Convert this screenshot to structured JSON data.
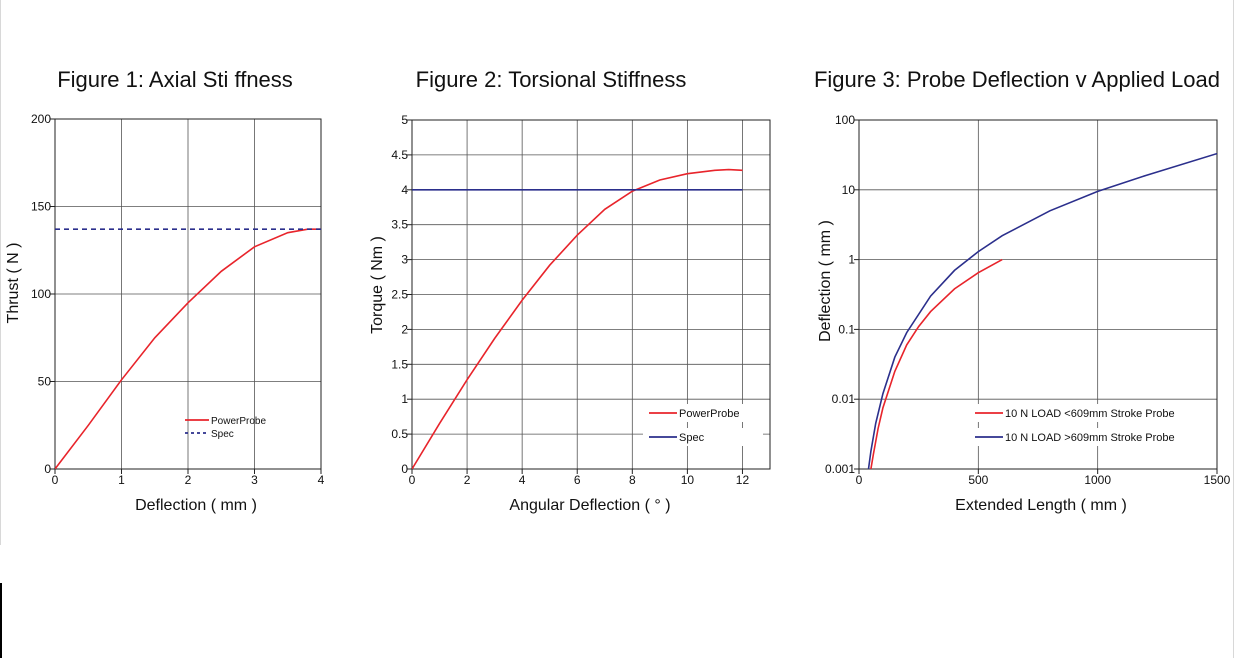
{
  "colors": {
    "red": "#e8242b",
    "blue": "#2b2f8c",
    "grid": "#555555",
    "axis": "#222222"
  },
  "chart_data": [
    {
      "type": "line",
      "title": "Figure 1: Axial Sti ffness",
      "xlabel": "Deflection ( mm )",
      "ylabel": "Thrust ( N )",
      "xlim": [
        0,
        4
      ],
      "ylim": [
        0,
        200
      ],
      "xticks": [
        0,
        1,
        2,
        3,
        4
      ],
      "yticks": [
        0,
        50,
        100,
        150,
        200
      ],
      "grid": true,
      "legend_position": "bottom-right",
      "series": [
        {
          "name": "PowerProbe",
          "color": "#e8242b",
          "dash": false,
          "x": [
            0,
            0.5,
            1,
            1.5,
            2,
            2.5,
            3,
            3.5,
            3.8,
            4.0
          ],
          "y": [
            0,
            25,
            51,
            75,
            95,
            113,
            127,
            135,
            137,
            137
          ]
        },
        {
          "name": "Spec",
          "color": "#2b2f8c",
          "dash": true,
          "x": [
            0,
            4
          ],
          "y": [
            137,
            137
          ]
        }
      ]
    },
    {
      "type": "line",
      "title": "Figure 2: Torsional Stiffness",
      "xlabel": "Angular Deflection ( ° )",
      "ylabel": "Torque ( Nm )",
      "xlim": [
        0,
        13
      ],
      "ylim": [
        0,
        5
      ],
      "xticks": [
        0,
        2,
        4,
        6,
        8,
        10,
        12
      ],
      "yticks": [
        0,
        0.5,
        1,
        1.5,
        2,
        2.5,
        3,
        3.5,
        4,
        4.5,
        5
      ],
      "grid": true,
      "legend_position": "bottom-right",
      "series": [
        {
          "name": "PowerProbe",
          "color": "#e8242b",
          "dash": false,
          "x": [
            0,
            1,
            2,
            3,
            4,
            5,
            6,
            7,
            8,
            9,
            10,
            11,
            11.5,
            12
          ],
          "y": [
            0,
            0.65,
            1.28,
            1.87,
            2.42,
            2.92,
            3.35,
            3.72,
            3.98,
            4.14,
            4.23,
            4.28,
            4.29,
            4.28
          ]
        },
        {
          "name": "Spec",
          "color": "#2b2f8c",
          "dash": false,
          "x": [
            0,
            12
          ],
          "y": [
            4.0,
            4.0
          ]
        }
      ]
    },
    {
      "type": "line",
      "title": "Figure 3: Probe Deflection v Applied Load",
      "xlabel": "Extended Length ( mm )",
      "ylabel": "Deflection ( mm )",
      "xlim": [
        0,
        1500
      ],
      "ylim": [
        0.001,
        100
      ],
      "yscale": "log",
      "xticks": [
        0,
        500,
        1000,
        1500
      ],
      "ytick_values": [
        0.001,
        0.01,
        0.1,
        1,
        10,
        100
      ],
      "ytick_labels": [
        "0.001",
        "0.01",
        "0.1",
        "1",
        "10",
        "100"
      ],
      "grid": true,
      "legend_position": "bottom-right",
      "series": [
        {
          "name": "10 N LOAD <609mm Stroke Probe",
          "color": "#e8242b",
          "dash": false,
          "x": [
            50,
            60,
            80,
            100,
            150,
            200,
            250,
            300,
            400,
            500,
            600
          ],
          "y": [
            0.001,
            0.0016,
            0.0038,
            0.0075,
            0.025,
            0.06,
            0.11,
            0.18,
            0.38,
            0.65,
            1.0
          ]
        },
        {
          "name": "10 N LOAD >609mm Stroke Probe",
          "color": "#2b2f8c",
          "dash": false,
          "x": [
            40,
            50,
            70,
            100,
            150,
            200,
            300,
            400,
            500,
            600,
            800,
            1000,
            1200,
            1500
          ],
          "y": [
            0.001,
            0.0018,
            0.0045,
            0.012,
            0.04,
            0.09,
            0.3,
            0.7,
            1.3,
            2.2,
            5.0,
            9.5,
            16,
            33
          ]
        }
      ]
    }
  ]
}
